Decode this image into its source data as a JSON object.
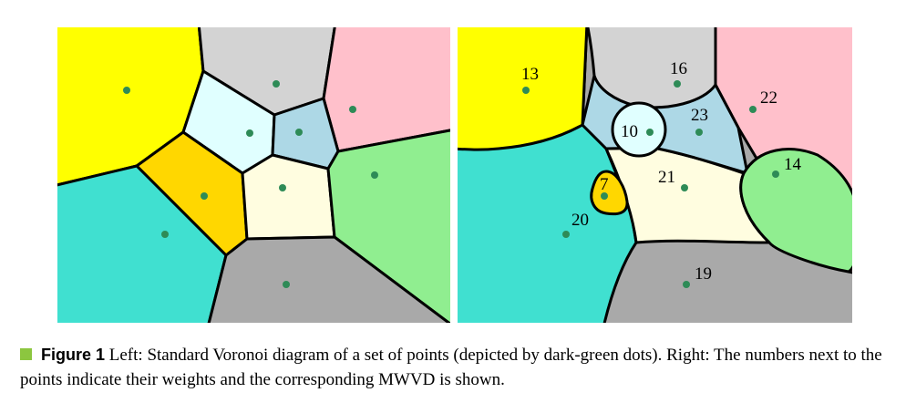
{
  "caption": {
    "label": "Figure 1",
    "text": "Left: Standard Voronoi diagram of a set of points (depicted by dark-green dots). Right: The numbers next to the points indicate their weights and the corresponding MWVD is shown."
  },
  "colors": {
    "site": "#2e8b57",
    "yellow": "#ffff00",
    "gray_light": "#d3d3d3",
    "pink": "#ffc0cb",
    "light_cyan": "#e0ffff",
    "light_blue": "#add8e6",
    "gold": "#ffd700",
    "light_yellow": "#fffde0",
    "light_green": "#90ee90",
    "turquoise": "#40e0d0",
    "dark_gray": "#a9a9a9"
  },
  "right_panel": {
    "weights": [
      "13",
      "16",
      "22",
      "10",
      "23",
      "21",
      "14",
      "7",
      "20",
      "19"
    ]
  }
}
